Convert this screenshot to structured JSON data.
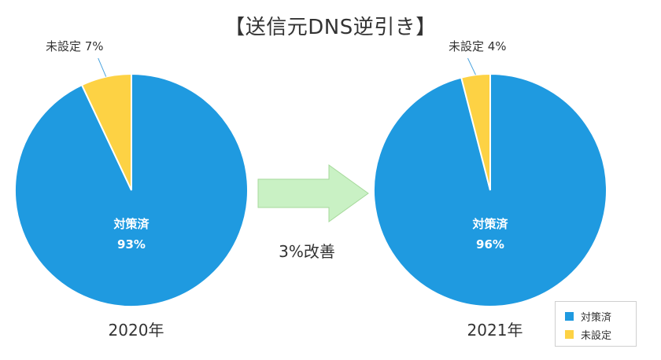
{
  "title": "【送信元DNS逆引き】",
  "improvement_label": "3%改善",
  "colors": {
    "done": "#1f9ae0",
    "notset": "#fdd244",
    "arrow_fill": "#c9f1c4",
    "arrow_stroke": "#a6d99b"
  },
  "legend": [
    {
      "label": "対策済",
      "color": "#1f9ae0"
    },
    {
      "label": "未設定",
      "color": "#fdd244"
    }
  ],
  "chart_data": [
    {
      "type": "pie",
      "title": "2020年",
      "slices": [
        {
          "label": "対策済",
          "value": 93,
          "display": "93%",
          "color": "#1f9ae0"
        },
        {
          "label": "未設定",
          "value": 7,
          "display": "未設定 7%",
          "color": "#fdd244"
        }
      ]
    },
    {
      "type": "pie",
      "title": "2021年",
      "slices": [
        {
          "label": "対策済",
          "value": 96,
          "display": "96%",
          "color": "#1f9ae0"
        },
        {
          "label": "未設定",
          "value": 4,
          "display": "未設定 4%",
          "color": "#fdd244"
        }
      ]
    }
  ]
}
